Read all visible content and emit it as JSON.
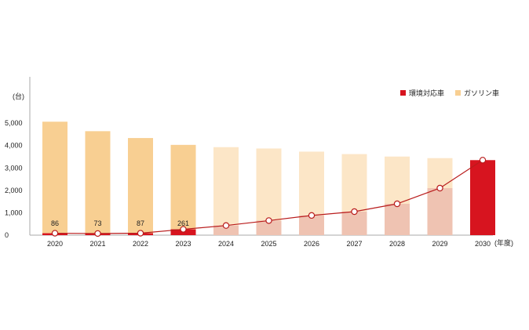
{
  "chart_data": {
    "type": "bar",
    "title": "",
    "xlabel": "",
    "ylabel": "(台)",
    "x_unit_label": "(年度)",
    "ylim": [
      0,
      5600
    ],
    "y_ticks": [
      0,
      1000,
      2000,
      3000,
      4000,
      5000
    ],
    "y_tick_labels": [
      "0",
      "1,000",
      "2,000",
      "3,000",
      "4,000",
      "5,000"
    ],
    "categories": [
      "2020",
      "2021",
      "2022",
      "2023",
      "2024",
      "2025",
      "2026",
      "2027",
      "2028",
      "2029",
      "2030"
    ],
    "series": [
      {
        "name": "環境対応車",
        "values": [
          86,
          73,
          87,
          261,
          430,
          650,
          880,
          1050,
          1400,
          2100,
          3350
        ]
      },
      {
        "name": "ガソリン車",
        "values": [
          4980,
          4570,
          4250,
          3770,
          3500,
          3220,
          2850,
          2570,
          2110,
          1340,
          0
        ]
      }
    ],
    "line_values": [
      86,
      73,
      87,
      261,
      430,
      650,
      880,
      1050,
      1400,
      2100,
      3350
    ],
    "data_labels": [
      {
        "category": "2020",
        "text": "86"
      },
      {
        "category": "2021",
        "text": "73"
      },
      {
        "category": "2022",
        "text": "87"
      },
      {
        "category": "2023",
        "text": "261"
      }
    ],
    "actual_count": 4,
    "legend_position": "top-right",
    "grid": false,
    "colors": {
      "eco_actual": "#d7141f",
      "eco_forecast": "#efc3b2",
      "gasoline_actual": "#f8cf92",
      "gasoline_forecast": "#fce6c7",
      "line": "#b91c1c",
      "marker_fill": "#ffffff",
      "axis": "#a9a9a9"
    }
  }
}
